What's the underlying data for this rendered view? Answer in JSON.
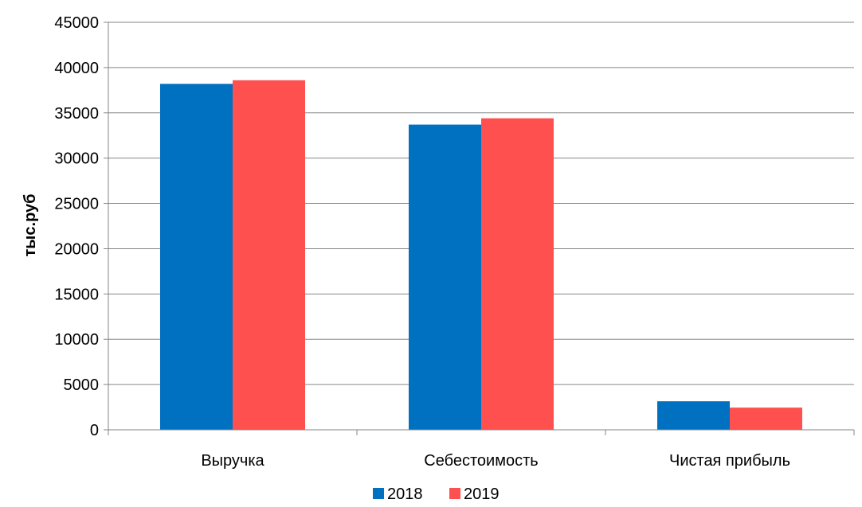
{
  "chart_data": {
    "type": "bar",
    "categories": [
      "Выручка",
      "Себестоимость",
      "Чистая прибыль"
    ],
    "series": [
      {
        "name": "2018",
        "color": "#0070C0",
        "values": [
          38200,
          33700,
          3150
        ]
      },
      {
        "name": "2019",
        "color": "#FF5050",
        "values": [
          38600,
          34400,
          2450
        ]
      }
    ],
    "xlabel": "",
    "ylabel": "тыс.руб",
    "ylim": [
      0,
      45000
    ],
    "yticks": [
      "0",
      "5000",
      "10000",
      "15000",
      "20000",
      "25000",
      "30000",
      "35000",
      "40000",
      "45000"
    ],
    "grid": true,
    "legend": "bottom"
  }
}
